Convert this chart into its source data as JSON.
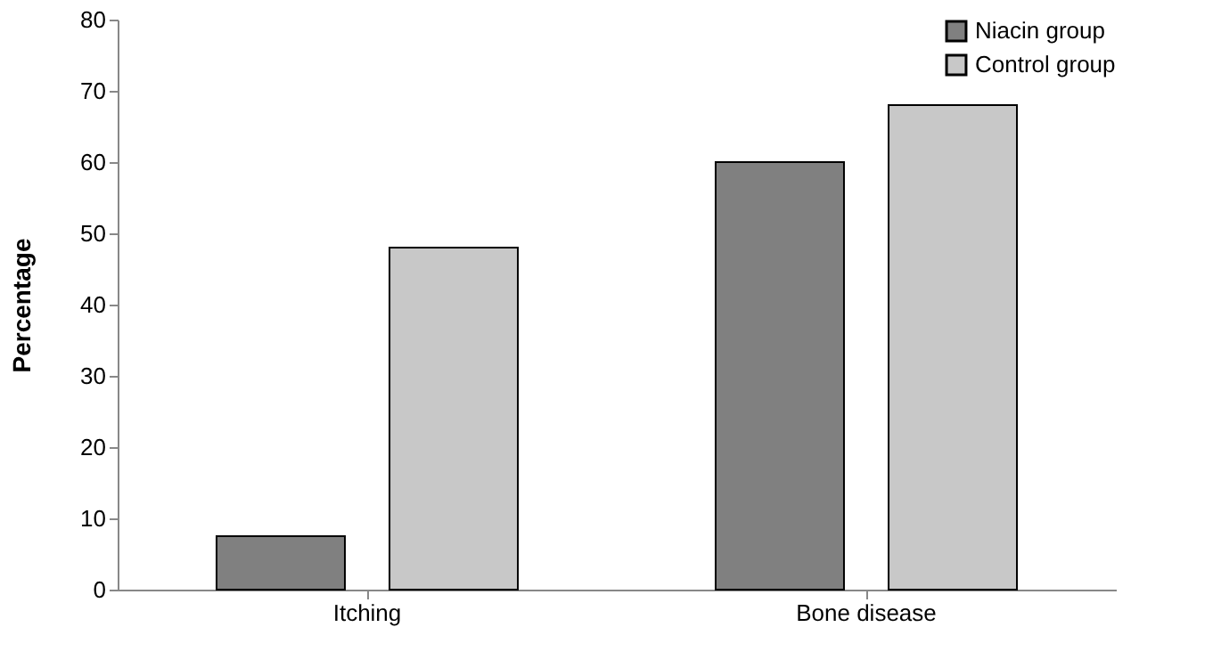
{
  "chart_data": {
    "type": "bar",
    "ylabel": "Percentage",
    "categories": [
      "Itching",
      "Bone disease"
    ],
    "series": [
      {
        "name": "Niacin group",
        "color": "#808080",
        "values": [
          7.5,
          60
        ]
      },
      {
        "name": "Control group",
        "color": "#c8c8c8",
        "values": [
          48,
          68
        ]
      }
    ],
    "ylim": [
      0,
      80
    ],
    "yticks": [
      0,
      10,
      20,
      30,
      40,
      50,
      60,
      70,
      80
    ],
    "grid": false,
    "legend": "top right"
  }
}
